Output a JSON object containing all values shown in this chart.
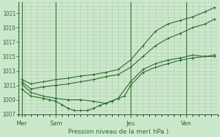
{
  "xlabel": "Pression niveau de la mer( hPa )",
  "background_color": "#cce8cc",
  "grid_color": "#aaccaa",
  "line_color": "#2d6a2d",
  "ylim": [
    1007,
    1022.5
  ],
  "yticks": [
    1007,
    1009,
    1011,
    1013,
    1015,
    1017,
    1019,
    1021
  ],
  "day_labels": [
    "Mer",
    "Sam",
    "Jeu",
    "Ven"
  ],
  "day_positions": [
    0.5,
    6,
    18,
    27
  ],
  "xlim": [
    0,
    32
  ],
  "series": [
    {
      "x": [
        0.5,
        2,
        4,
        6,
        8,
        10,
        12,
        14,
        16,
        18,
        20,
        22,
        24,
        26,
        28,
        30,
        31.5
      ],
      "y": [
        1011.8,
        1011.2,
        1011.5,
        1011.8,
        1012.0,
        1012.3,
        1012.5,
        1012.8,
        1013.2,
        1014.5,
        1016.5,
        1018.5,
        1019.5,
        1020.0,
        1020.5,
        1021.2,
        1021.8
      ]
    },
    {
      "x": [
        0.5,
        2,
        4,
        6,
        8,
        10,
        12,
        14,
        16,
        18,
        20,
        22,
        24,
        26,
        28,
        30,
        31.5
      ],
      "y": [
        1011.5,
        1010.5,
        1010.8,
        1011.0,
        1011.2,
        1011.5,
        1011.8,
        1012.2,
        1012.5,
        1013.5,
        1015.0,
        1016.5,
        1017.5,
        1018.2,
        1019.0,
        1019.5,
        1020.2
      ]
    },
    {
      "x": [
        0.5,
        2,
        4,
        6,
        8,
        10,
        12,
        14,
        16,
        18,
        20,
        22,
        24,
        26,
        28,
        30,
        31.5
      ],
      "y": [
        1011.2,
        1010.0,
        1009.5,
        1009.2,
        1009.0,
        1009.0,
        1008.8,
        1008.5,
        1009.2,
        1011.5,
        1013.2,
        1014.0,
        1014.5,
        1014.8,
        1015.2,
        1015.0,
        1015.2
      ]
    },
    {
      "x": [
        0.5,
        2,
        4,
        5,
        6,
        7,
        8,
        9,
        10,
        11,
        12,
        13,
        14,
        15,
        16,
        17,
        18,
        20,
        22,
        24,
        26,
        28,
        30,
        31.5
      ],
      "y": [
        1010.5,
        1009.5,
        1009.2,
        1009.0,
        1008.8,
        1008.3,
        1007.8,
        1007.5,
        1007.5,
        1007.5,
        1007.8,
        1008.2,
        1008.5,
        1008.8,
        1009.2,
        1009.5,
        1011.0,
        1012.8,
        1013.5,
        1014.0,
        1014.5,
        1014.8,
        1015.0,
        1015.0
      ]
    }
  ]
}
